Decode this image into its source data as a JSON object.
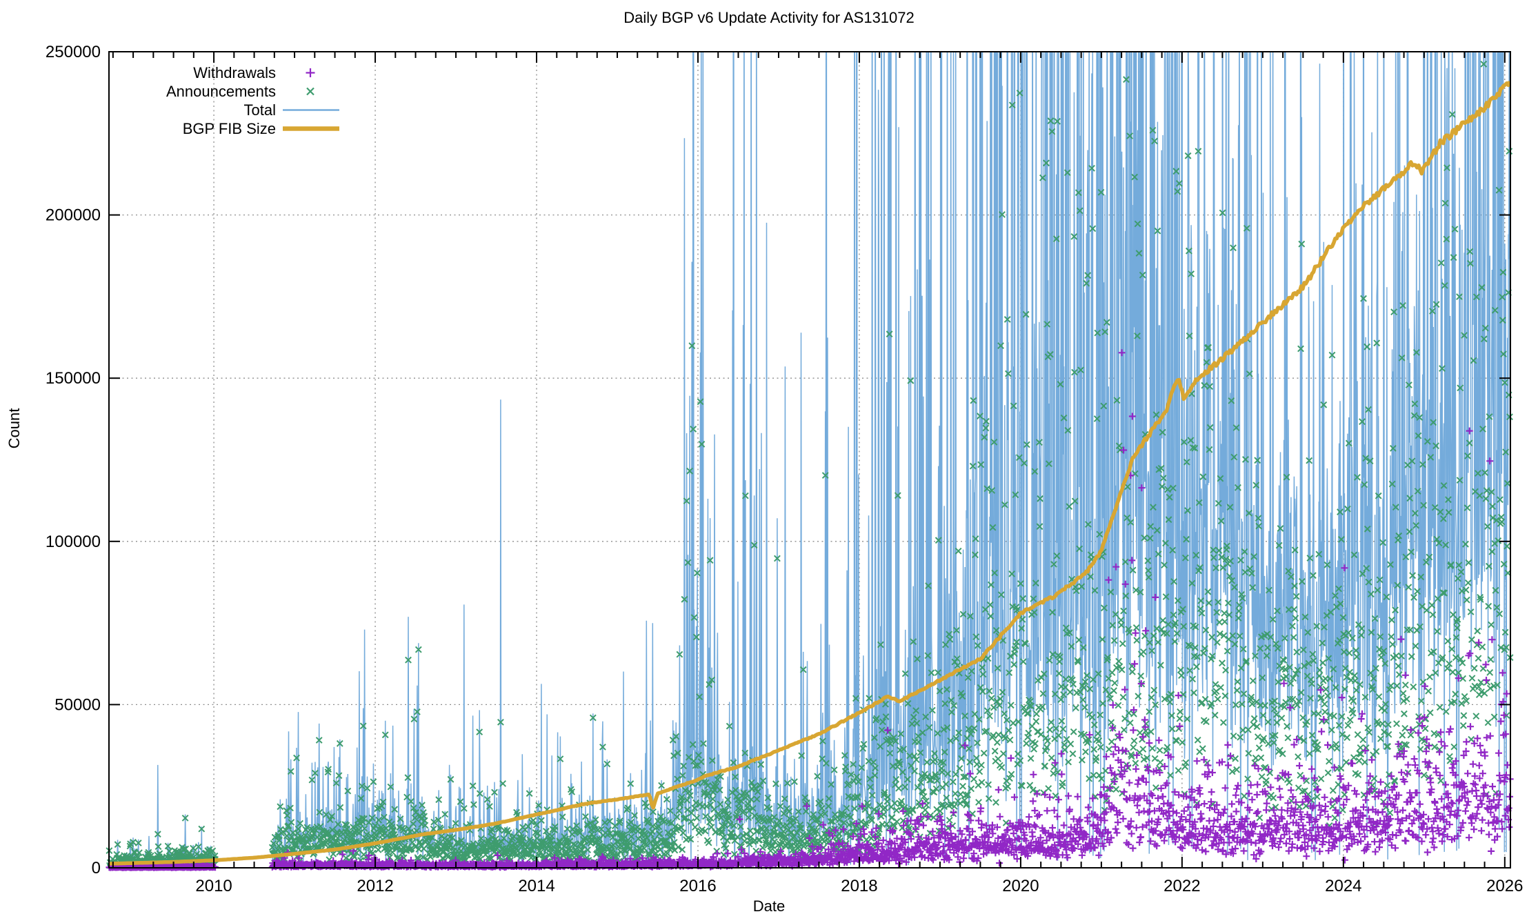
{
  "chart_data": {
    "type": "mixed-scatter-line",
    "title": "Daily BGP v6 Update Activity for AS131072",
    "xlabel": "Date",
    "ylabel": "Count",
    "xlim": [
      2008.7,
      2026.07
    ],
    "ylim": [
      0,
      250000
    ],
    "xticks": [
      2010,
      2012,
      2014,
      2016,
      2018,
      2020,
      2022,
      2024,
      2026
    ],
    "yticks": [
      0,
      50000,
      100000,
      150000,
      200000,
      250000
    ],
    "x_minor_interval_years": 0.25,
    "grid": true,
    "grid_color": "#8c8c8c",
    "border_color": "#000000",
    "legend_position": "top-left",
    "sampling": {
      "seed": 1337,
      "step_days": 2,
      "gaps": [
        [
          2010.02,
          2010.72
        ]
      ]
    },
    "series": [
      {
        "id": "withdrawals",
        "label": "Withdrawals",
        "type": "points",
        "marker": "plus",
        "color": "#9127C6",
        "spread": 0.5,
        "outlier_prob": 0.02,
        "outlier_mult": [
          2.2,
          5
        ],
        "median_keypoints": [
          [
            2008.7,
            150
          ],
          [
            2009.5,
            220
          ],
          [
            2010,
            260
          ],
          [
            2010.8,
            700
          ],
          [
            2011.5,
            820
          ],
          [
            2012,
            800
          ],
          [
            2013,
            650
          ],
          [
            2014,
            700
          ],
          [
            2015,
            800
          ],
          [
            2016,
            1100
          ],
          [
            2016.8,
            1800
          ],
          [
            2017.5,
            2800
          ],
          [
            2018,
            4200
          ],
          [
            2018.5,
            5200
          ],
          [
            2019,
            6500
          ],
          [
            2019.5,
            7500
          ],
          [
            2020,
            8800
          ],
          [
            2020.6,
            8600
          ],
          [
            2021.0,
            13000
          ],
          [
            2021.25,
            26000
          ],
          [
            2021.5,
            22000
          ],
          [
            2021.8,
            16000
          ],
          [
            2022,
            14000
          ],
          [
            2022.5,
            12500
          ],
          [
            2023,
            11000
          ],
          [
            2023.6,
            12000
          ],
          [
            2024,
            13500
          ],
          [
            2024.6,
            15500
          ],
          [
            2025,
            17000
          ],
          [
            2025.5,
            20500
          ],
          [
            2026.07,
            22000
          ]
        ],
        "bursts": [
          {
            "range": [
              2021.1,
              2021.55
            ],
            "prob": 0.16,
            "mult": [
              2.0,
              6.2
            ]
          },
          {
            "range": [
              2023.1,
              2026.05
            ],
            "prob": 0.015,
            "mult": [
              2.2,
              3.6
            ]
          }
        ]
      },
      {
        "id": "announcements",
        "label": "Announcements",
        "type": "points",
        "marker": "cross",
        "color": "#3E9C6E",
        "spread": 0.5,
        "outlier_prob": 0.03,
        "outlier_mult": [
          2,
          4.5
        ],
        "median_keypoints": [
          [
            2008.7,
            1900
          ],
          [
            2009.5,
            2600
          ],
          [
            2010,
            2400
          ],
          [
            2010.8,
            6500
          ],
          [
            2011.2,
            9000
          ],
          [
            2011.6,
            8000
          ],
          [
            2012,
            7500
          ],
          [
            2012.5,
            9000
          ],
          [
            2013,
            6000
          ],
          [
            2013.5,
            6500
          ],
          [
            2014,
            6200
          ],
          [
            2014.5,
            7500
          ],
          [
            2015,
            6800
          ],
          [
            2015.5,
            7500
          ],
          [
            2015.85,
            20000
          ],
          [
            2016.05,
            27000
          ],
          [
            2016.3,
            16000
          ],
          [
            2016.8,
            13000
          ],
          [
            2017.2,
            9000
          ],
          [
            2017.8,
            13000
          ],
          [
            2018.2,
            20000
          ],
          [
            2018.6,
            24000
          ],
          [
            2019,
            28000
          ],
          [
            2019.5,
            40000
          ],
          [
            2019.8,
            52000
          ],
          [
            2020.2,
            58000
          ],
          [
            2020.6,
            62000
          ],
          [
            2021,
            48000
          ],
          [
            2021.3,
            55000
          ],
          [
            2021.7,
            62000
          ],
          [
            2022,
            68000
          ],
          [
            2022.4,
            72000
          ],
          [
            2022.8,
            62000
          ],
          [
            2023.2,
            50000
          ],
          [
            2023.6,
            46000
          ],
          [
            2024,
            52000
          ],
          [
            2024.5,
            58000
          ],
          [
            2025,
            66000
          ],
          [
            2025.5,
            80000
          ],
          [
            2026.07,
            95000
          ]
        ],
        "bursts": [
          {
            "range": [
              2010.8,
              2012.9
            ],
            "prob": 0.03,
            "mult": [
              3.0,
              5.5
            ]
          },
          {
            "range": [
              2015.8,
              2016.2
            ],
            "prob": 0.12,
            "mult": [
              3.5,
              6.0
            ]
          },
          {
            "range": [
              2019.4,
              2021.6
            ],
            "prob": 0.1,
            "mult": [
              2.5,
              4.5
            ]
          },
          {
            "range": [
              2024.6,
              2026.05
            ],
            "prob": 0.05,
            "mult": [
              1.8,
              2.6
            ]
          }
        ]
      },
      {
        "id": "total",
        "label": "Total",
        "type": "line",
        "color": "#74ABDB",
        "line_width": 1.5,
        "spike_prob_keypoints": [
          [
            2008.7,
            0.02
          ],
          [
            2010.8,
            0.05
          ],
          [
            2012,
            0.06
          ],
          [
            2014,
            0.05
          ],
          [
            2015.8,
            0.12
          ],
          [
            2016.4,
            0.1
          ],
          [
            2016.8,
            0.16
          ],
          [
            2017.4,
            0.1
          ],
          [
            2018,
            0.18
          ],
          [
            2019,
            0.22
          ],
          [
            2019.6,
            0.3
          ],
          [
            2020.5,
            0.3
          ],
          [
            2021.5,
            0.28
          ],
          [
            2022,
            0.18
          ],
          [
            2023,
            0.14
          ],
          [
            2024,
            0.16
          ],
          [
            2025,
            0.18
          ],
          [
            2026.07,
            0.2
          ]
        ],
        "spike_maxmult_keypoints": [
          [
            2008.7,
            3
          ],
          [
            2010.8,
            5
          ],
          [
            2012,
            6
          ],
          [
            2014,
            5
          ],
          [
            2015.5,
            7
          ],
          [
            2016.2,
            12
          ],
          [
            2016.6,
            25
          ],
          [
            2017.5,
            15
          ],
          [
            2018.2,
            20
          ],
          [
            2019,
            14
          ],
          [
            2020,
            12
          ],
          [
            2021.5,
            10
          ],
          [
            2022,
            5
          ],
          [
            2023,
            4
          ],
          [
            2024,
            4.5
          ],
          [
            2025,
            4.5
          ],
          [
            2026.07,
            4
          ]
        ],
        "dip_prob": 0.025,
        "dip_factor": 0.05,
        "spike_min_mult": 1.8
      },
      {
        "id": "fib",
        "label": "BGP FIB Size",
        "type": "line",
        "color": "#D8A632",
        "line_width": 5.5,
        "points": [
          [
            2008.7,
            1250
          ],
          [
            2009.5,
            1800
          ],
          [
            2010,
            2300
          ],
          [
            2010.5,
            3100
          ],
          [
            2011,
            4300
          ],
          [
            2011.5,
            5600
          ],
          [
            2012,
            7500
          ],
          [
            2012.6,
            10300
          ],
          [
            2013,
            11600
          ],
          [
            2013.5,
            13600
          ],
          [
            2014,
            16300
          ],
          [
            2014.6,
            19600
          ],
          [
            2015,
            21000
          ],
          [
            2015.4,
            22500
          ],
          [
            2015.44,
            18000
          ],
          [
            2015.5,
            22800
          ],
          [
            2016,
            27000
          ],
          [
            2016.1,
            28200
          ],
          [
            2016.5,
            31000
          ],
          [
            2017,
            36000
          ],
          [
            2017.5,
            41000
          ],
          [
            2018,
            47500
          ],
          [
            2018.35,
            52500
          ],
          [
            2018.5,
            51000
          ],
          [
            2019,
            57500
          ],
          [
            2019.5,
            64000
          ],
          [
            2020,
            78000
          ],
          [
            2020.4,
            83000
          ],
          [
            2020.8,
            90000
          ],
          [
            2021,
            97000
          ],
          [
            2021.2,
            112000
          ],
          [
            2021.4,
            126000
          ],
          [
            2021.6,
            133000
          ],
          [
            2021.8,
            140000
          ],
          [
            2021.95,
            150500
          ],
          [
            2022.02,
            144000
          ],
          [
            2022.2,
            150000
          ],
          [
            2022.5,
            156000
          ],
          [
            2023,
            167000
          ],
          [
            2023.5,
            178000
          ],
          [
            2024,
            196000
          ],
          [
            2024.3,
            204000
          ],
          [
            2024.6,
            210000
          ],
          [
            2024.85,
            216000
          ],
          [
            2024.97,
            213500
          ],
          [
            2025.2,
            222000
          ],
          [
            2025.5,
            228000
          ],
          [
            2025.8,
            234000
          ],
          [
            2026.07,
            241500
          ]
        ]
      }
    ]
  }
}
